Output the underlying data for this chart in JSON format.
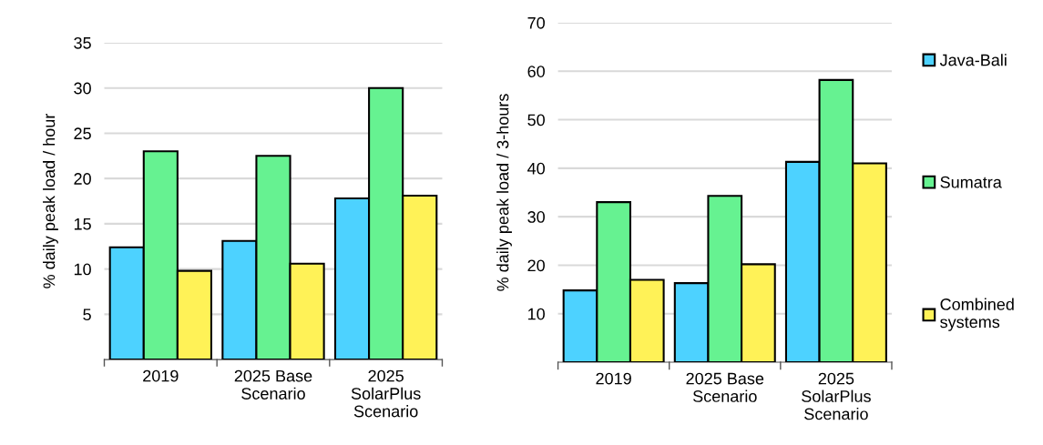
{
  "chart_data": [
    {
      "type": "bar",
      "ylabel": "% daily peak load / hour",
      "categories": [
        "2019",
        "2025 Base\nScenario",
        "2025\nSolarPlus\nScenario"
      ],
      "series": [
        {
          "color": "#4dd2ff",
          "values": [
            12.4,
            13.1,
            17.8
          ]
        },
        {
          "color": "#66f291",
          "values": [
            23.0,
            22.5,
            30.0
          ]
        },
        {
          "color": "#fff257",
          "values": [
            9.8,
            10.6,
            18.1
          ]
        }
      ],
      "ylim": [
        0,
        35
      ],
      "yticks": [
        5,
        10,
        15,
        20,
        25,
        30,
        35
      ],
      "grid": "y",
      "legend": false
    },
    {
      "type": "bar",
      "ylabel": "% daily peak load / 3-hours",
      "categories": [
        "2019",
        "2025 Base\nScenario",
        "2025\nSolarPlus\nScenario"
      ],
      "series": [
        {
          "name": "Java-Bali",
          "color": "#4dd2ff",
          "values": [
            14.8,
            16.3,
            41.3
          ]
        },
        {
          "name": "Sumatra",
          "color": "#66f291",
          "values": [
            33.0,
            34.3,
            58.2
          ]
        },
        {
          "name": "Combined\nsystems",
          "color": "#fff257",
          "values": [
            17.0,
            20.2,
            41.0
          ]
        }
      ],
      "ylim": [
        0,
        70
      ],
      "yticks": [
        10,
        20,
        30,
        40,
        50,
        60,
        70
      ],
      "grid": "y",
      "legend": "right"
    }
  ]
}
